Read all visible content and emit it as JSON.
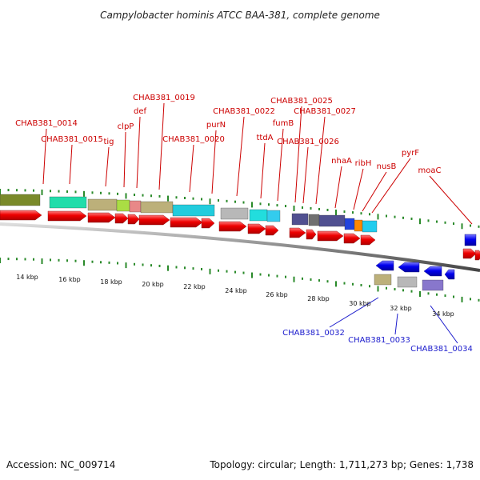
{
  "title": "Campylobacter hominis ATCC BAA-381, complete genome",
  "footer": {
    "accession": "Accession: NC_009714",
    "topology": "Topology: circular; Length: 1,711,273 bp; Genes: 1,738"
  },
  "colors": {
    "forward_cds": "#ff0000",
    "reverse_cds": "#0000ff",
    "forward_label": "#cc0000",
    "reverse_label": "#1a1acc",
    "backbone": "#888888",
    "ticks": "#2a8a2a"
  },
  "top_labels": [
    "CHAB381_0014",
    "CHAB381_0015",
    "tig",
    "clpP",
    "def",
    "CHAB381_0019",
    "CHAB381_0020",
    "purN",
    "CHAB381_0022",
    "ttdA",
    "fumB",
    "CHAB381_0025",
    "CHAB381_0026",
    "CHAB381_0027",
    "nhaA",
    "ribH",
    "nusB",
    "pyrF",
    "moaC"
  ],
  "bottom_labels": [
    "CHAB381_0032",
    "CHAB381_0033",
    "CHAB381_0034"
  ],
  "kbp_labels": [
    "14 kbp",
    "16 kbp",
    "18 kbp",
    "20 kbp",
    "22 kbp",
    "24 kbp",
    "26 kbp",
    "28 kbp",
    "30 kbp",
    "32 kbp",
    "34 kbp"
  ]
}
